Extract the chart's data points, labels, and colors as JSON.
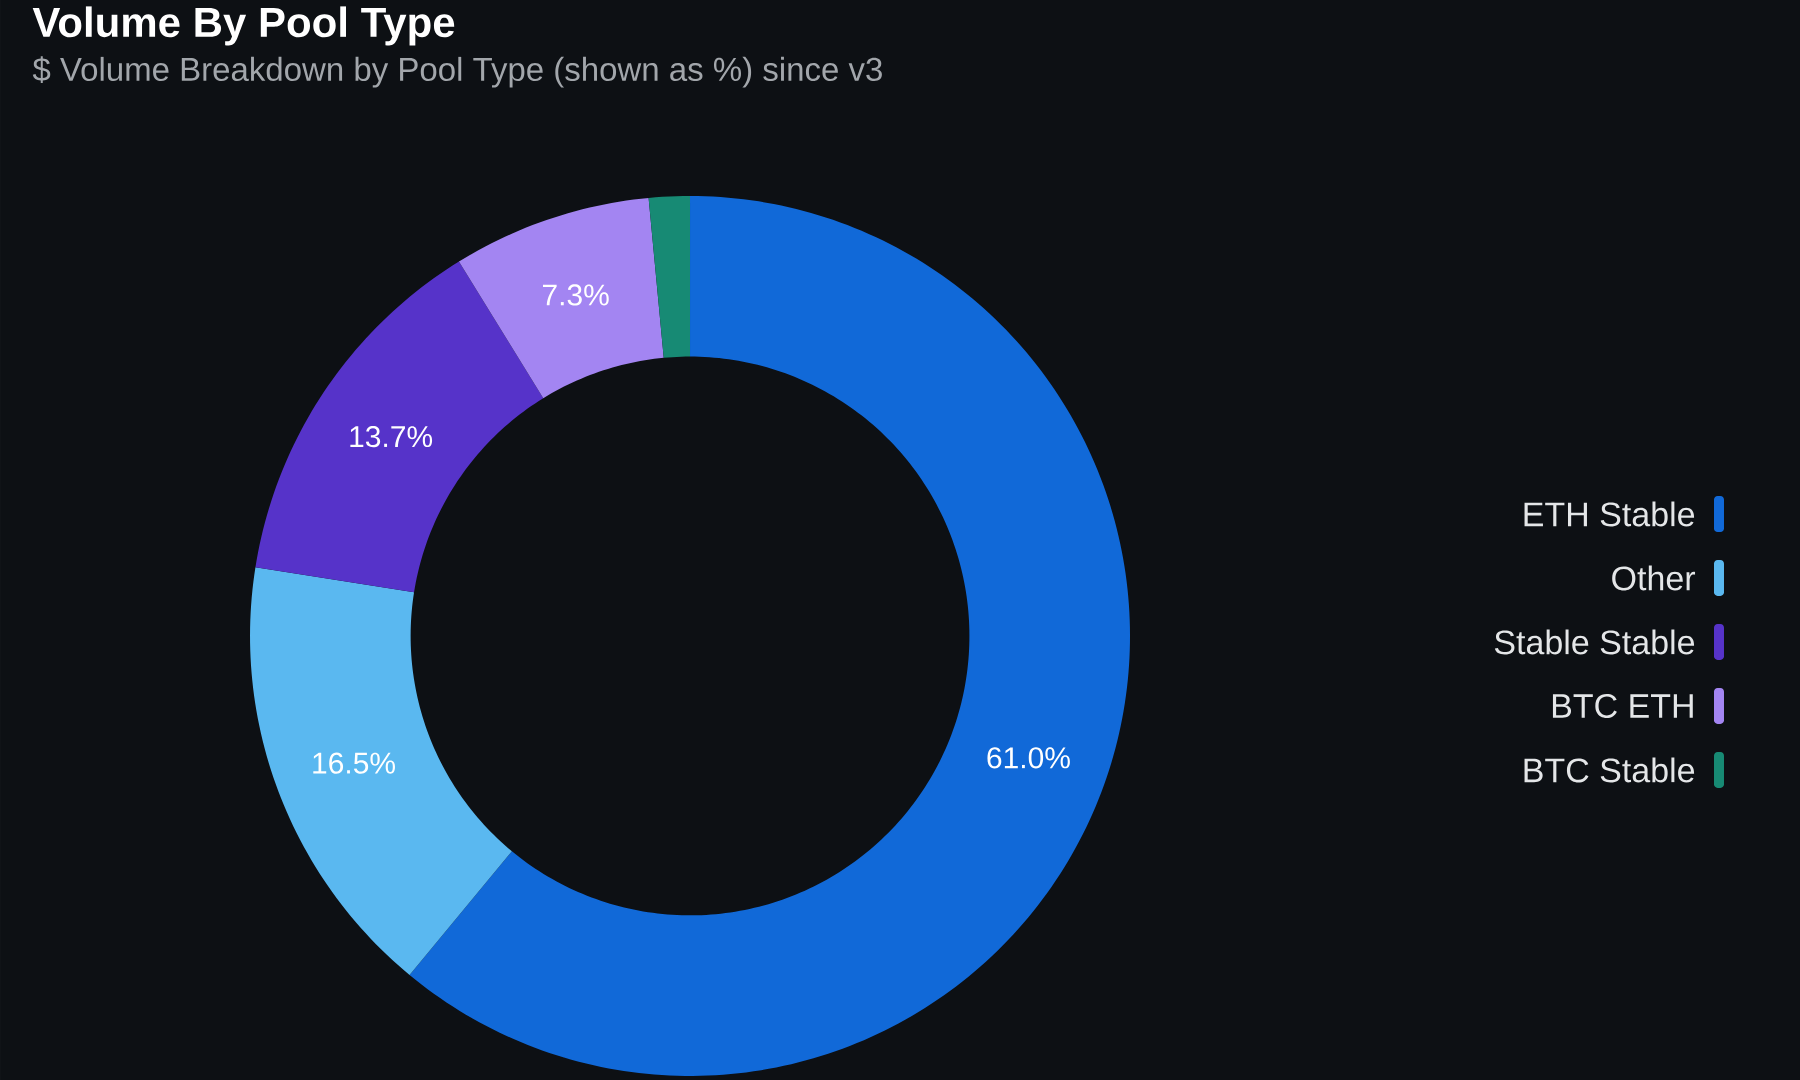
{
  "chart_data": {
    "type": "donut",
    "title": "Volume By Pool Type",
    "subtitle": "$ Volume Breakdown by Pool Type (shown as %) since v3",
    "categories": [
      "ETH Stable",
      "Other",
      "Stable Stable",
      "BTC ETH",
      "BTC Stable"
    ],
    "values": [
      61.0,
      16.5,
      13.7,
      7.3,
      1.5
    ],
    "colors": [
      "#1169d8",
      "#5ab8f0",
      "#5633c9",
      "#a385f2",
      "#178a74"
    ],
    "value_labels": [
      "61.0%",
      "16.5%",
      "13.7%",
      "7.3%",
      null
    ],
    "legend": "right"
  }
}
